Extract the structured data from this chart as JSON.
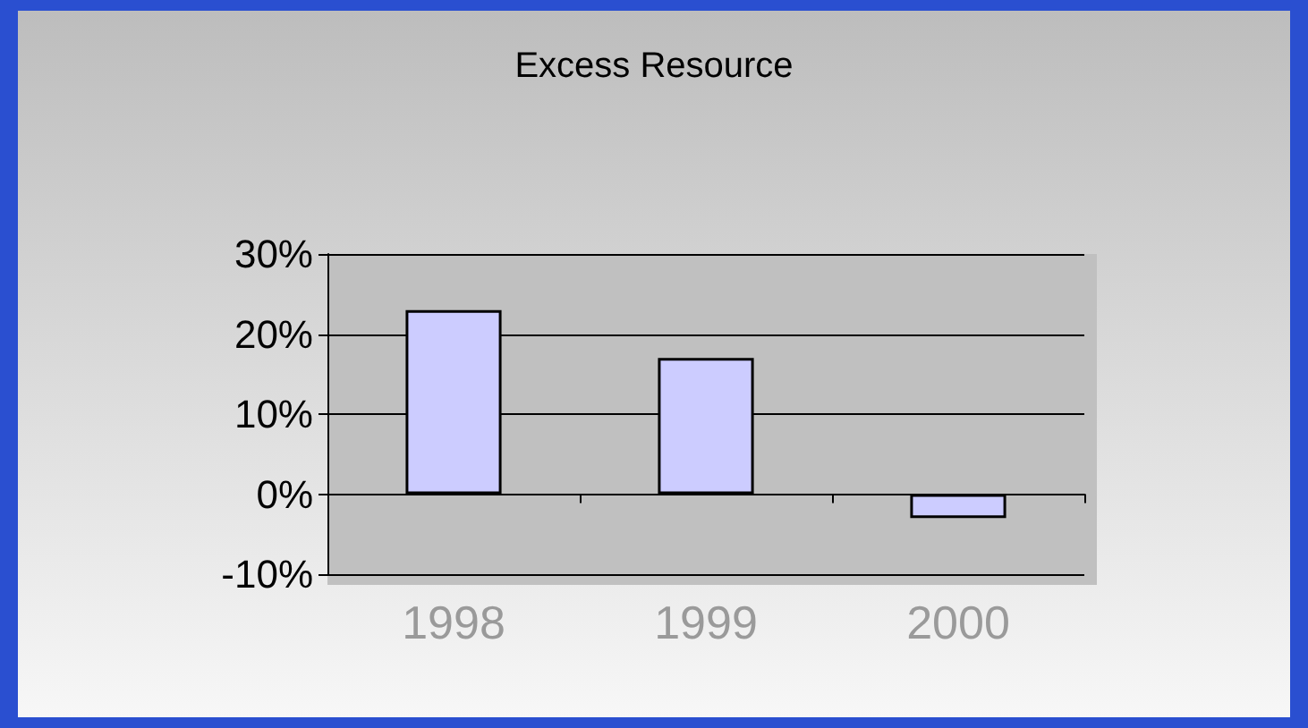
{
  "chart_data": {
    "type": "bar",
    "title": "Excess Resource",
    "categories": [
      "1998",
      "1999",
      "2000"
    ],
    "values": [
      23,
      17,
      -3
    ],
    "color": "#ccccff",
    "ylim": [
      -10,
      30
    ],
    "yticks": [
      {
        "value": -10,
        "label": "-10%"
      },
      {
        "value": 0,
        "label": "0%"
      },
      {
        "value": 10,
        "label": "10%"
      },
      {
        "value": 20,
        "label": "20%"
      },
      {
        "value": 30,
        "label": "30%"
      }
    ],
    "grid": "y"
  }
}
